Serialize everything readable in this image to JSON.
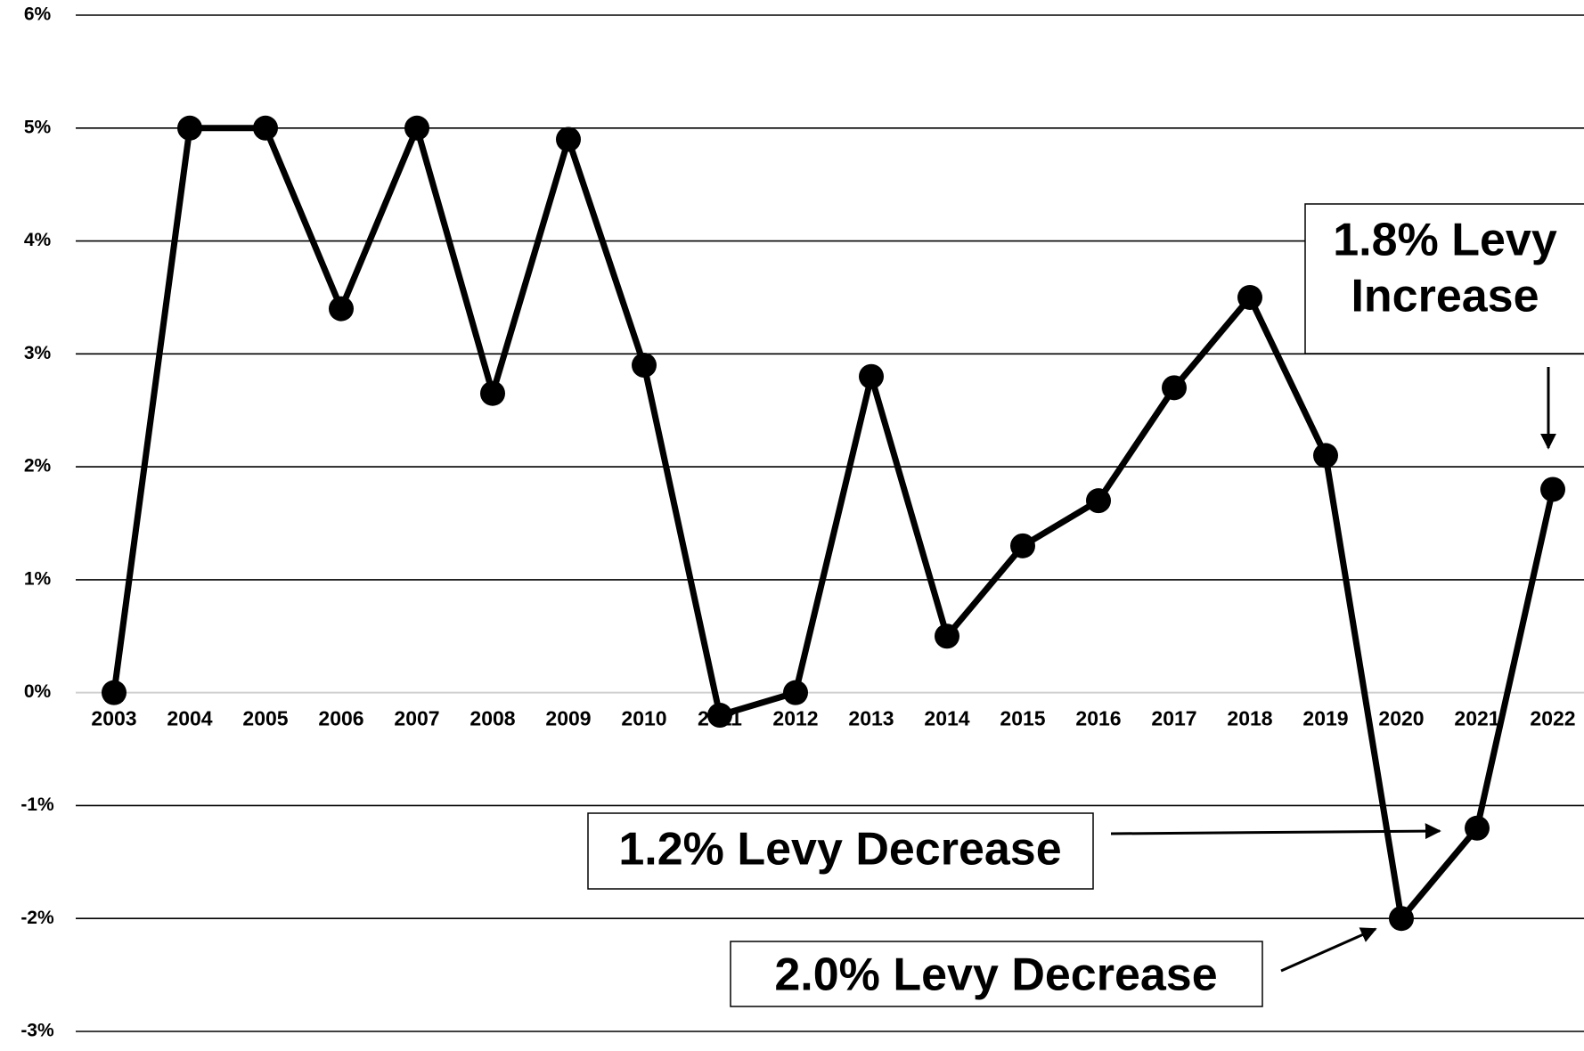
{
  "chart_data": {
    "type": "line",
    "categories": [
      "2003",
      "2004",
      "2005",
      "2006",
      "2007",
      "2008",
      "2009",
      "2010",
      "2011",
      "2012",
      "2013",
      "2014",
      "2015",
      "2016",
      "2017",
      "2018",
      "2019",
      "2020",
      "2021",
      "2022"
    ],
    "values": [
      0,
      5,
      5,
      3.4,
      5,
      2.65,
      4.9,
      2.9,
      -0.2,
      0,
      2.8,
      0.5,
      1.3,
      1.7,
      2.7,
      3.5,
      2.1,
      -2.0,
      -1.2,
      1.8
    ],
    "color": "#000000",
    "ylim": [
      -3,
      6
    ],
    "yticks": [
      {
        "value": -3,
        "label": "-3%"
      },
      {
        "value": -2,
        "label": "-2%"
      },
      {
        "value": -1,
        "label": "-1%"
      },
      {
        "value": 0,
        "label": "0%"
      },
      {
        "value": 1,
        "label": "1%"
      },
      {
        "value": 2,
        "label": "2%"
      },
      {
        "value": 3,
        "label": "3%"
      },
      {
        "value": 4,
        "label": "4%"
      },
      {
        "value": 5,
        "label": "5%"
      },
      {
        "value": 6,
        "label": "6%"
      }
    ],
    "grid": true,
    "annotations": [
      {
        "lines": [
          "1.8% Levy",
          "Increase"
        ]
      },
      {
        "lines": [
          "1.2% Levy Decrease"
        ]
      },
      {
        "lines": [
          "2.0% Levy Decrease"
        ]
      }
    ]
  }
}
